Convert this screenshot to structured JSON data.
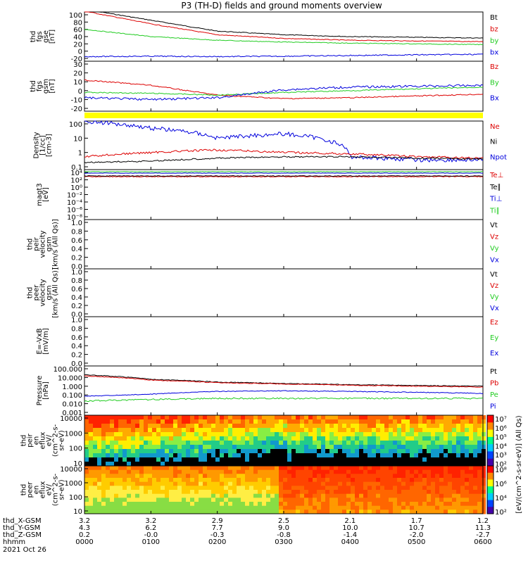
{
  "title": "P3 (TH-D) fields and ground moments overview",
  "colors": {
    "black": "#000000",
    "red": "#dd0000",
    "green": "#22cc22",
    "blue": "#0000dd",
    "yellow": "#ffff00"
  },
  "panels": [
    {
      "id": "fgs-gse",
      "ylabel": [
        "thd",
        "fgs",
        "gse",
        "[nT]"
      ],
      "ticks": [
        "100",
        "80",
        "60",
        "40",
        "20",
        "0",
        "-20"
      ],
      "legend": [
        {
          "text": "Bt",
          "color": "#000000"
        },
        {
          "text": "bz",
          "color": "#dd0000"
        },
        {
          "text": "by",
          "color": "#22cc22"
        },
        {
          "text": "bx",
          "color": "#0000dd"
        }
      ]
    },
    {
      "id": "fgs-gsm",
      "ylabel": [
        "thd",
        "fgs",
        "gsm",
        "[nT]"
      ],
      "ticks": [
        "30",
        "20",
        "10",
        "0",
        "-10",
        "-20"
      ],
      "legend": [
        {
          "text": "Bz",
          "color": "#dd0000"
        },
        {
          "text": "By",
          "color": "#22cc22"
        },
        {
          "text": "Bx",
          "color": "#0000dd"
        }
      ]
    },
    {
      "id": "density",
      "ylabel": [
        "Density",
        "[1/cc]",
        "[cm-3]"
      ],
      "ticks": [
        "100",
        "10",
        "1",
        "0.1"
      ],
      "legend": [
        {
          "text": "Ne",
          "color": "#dd0000"
        },
        {
          "text": "Ni",
          "color": "#000000"
        },
        {
          "text": "Npot",
          "color": "#0000dd"
        }
      ]
    },
    {
      "id": "temperature",
      "ylabel": [
        "magt3",
        "[eV]"
      ],
      "ticks": [
        "10⁴",
        "10²",
        "10⁰",
        "10⁻²",
        "10⁻⁴",
        "10⁻⁶",
        "10⁻⁸"
      ],
      "legend": [
        {
          "text": "Te⊥",
          "color": "#dd0000"
        },
        {
          "text": "Te∥",
          "color": "#000000"
        },
        {
          "text": "Ti⊥",
          "color": "#0000dd"
        },
        {
          "text": "Ti∥",
          "color": "#22cc22"
        }
      ]
    },
    {
      "id": "peir-velocity",
      "ylabel": [
        "thd",
        "peir",
        "velocity",
        "gsm",
        "[km/s (All Qs)]"
      ],
      "ticks": [
        "1.0",
        "0.8",
        "0.6",
        "0.4",
        "0.2",
        "0.0"
      ],
      "legend": [
        {
          "text": "Vt",
          "color": "#000000"
        },
        {
          "text": "Vz",
          "color": "#dd0000"
        },
        {
          "text": "Vy",
          "color": "#22cc22"
        },
        {
          "text": "Vx",
          "color": "#0000dd"
        }
      ]
    },
    {
      "id": "peer-velocity",
      "ylabel": [
        "thd",
        "peer",
        "velocity",
        "gsm",
        "[km/s (All Qs)]"
      ],
      "ticks": [
        "1.0",
        "0.8",
        "0.6",
        "0.4",
        "0.2",
        "0.0"
      ],
      "legend": [
        {
          "text": "Vt",
          "color": "#000000"
        },
        {
          "text": "Vz",
          "color": "#dd0000"
        },
        {
          "text": "Vy",
          "color": "#22cc22"
        },
        {
          "text": "Vx",
          "color": "#0000dd"
        }
      ]
    },
    {
      "id": "efield",
      "ylabel": [
        "E=-VxB",
        "[mV/m]"
      ],
      "ticks": [
        "1.0",
        "0.8",
        "0.6",
        "0.4",
        "0.2",
        "0.0"
      ],
      "legend": [
        {
          "text": "Ez",
          "color": "#dd0000"
        },
        {
          "text": "Ey",
          "color": "#22cc22"
        },
        {
          "text": "Ex",
          "color": "#0000dd"
        }
      ]
    },
    {
      "id": "pressure",
      "ylabel": [
        "Pressure",
        "[nPa]"
      ],
      "ticks": [
        "100.000",
        "10.000",
        "1.000",
        "0.100",
        "0.010",
        "0.001"
      ],
      "legend": [
        {
          "text": "Pt",
          "color": "#000000"
        },
        {
          "text": "Pb",
          "color": "#dd0000"
        },
        {
          "text": "Pe",
          "color": "#22cc22"
        },
        {
          "text": "Pi",
          "color": "#0000dd"
        }
      ]
    },
    {
      "id": "peir-eflux",
      "ylabel": [
        "thd",
        "peir",
        "en",
        "eflux",
        "eV/",
        "(cm^2-s-",
        "sr-eV)"
      ],
      "ticks": [
        "10000",
        "1000",
        "100",
        "10"
      ],
      "colorbar": [
        "10⁷",
        "10⁶",
        "10⁵",
        "10⁴",
        "10³",
        "10²"
      ],
      "colorbar_label": "[eV/(cm^2-s-sr-eV)] (All Qs)"
    },
    {
      "id": "peer-eflux",
      "ylabel": [
        "thd",
        "peer",
        "en",
        "eflux",
        "eV/",
        "(cm^2-s-",
        "sr-eV)"
      ],
      "ticks": [
        "10000",
        "1000",
        "100",
        "10"
      ],
      "colorbar": [
        "10⁸",
        "10⁶",
        "10⁴",
        "10²"
      ],
      "colorbar_label": "[eV/(cm^2-s-sr-eV)]"
    }
  ],
  "ephemeris": {
    "rows": [
      {
        "label": "thd_X-GSM",
        "values": [
          "3.2",
          "3.2",
          "2.9",
          "2.5",
          "2.1",
          "1.7",
          "1.2"
        ]
      },
      {
        "label": "thd_Y-GSM",
        "values": [
          "4.3",
          "6.2",
          "7.7",
          "9.0",
          "10.0",
          "10.7",
          "11.3"
        ]
      },
      {
        "label": "thd_Z-GSM",
        "values": [
          "0.2",
          "-0.0",
          "-0.3",
          "-0.8",
          "-1.4",
          "-2.0",
          "-2.7"
        ]
      },
      {
        "label": "hhmm",
        "values": [
          "0000",
          "0100",
          "0200",
          "0300",
          "0400",
          "0500",
          "0600"
        ]
      }
    ],
    "date": "2021 Oct 26"
  },
  "chart_data": {
    "type": "line",
    "title": "P3 (TH-D) fields and ground moments overview",
    "x": [
      "0000",
      "0100",
      "0200",
      "0300",
      "0400",
      "0500",
      "0600"
    ],
    "xlabel": "hhmm",
    "series": [
      {
        "name": "Bt",
        "values": [
          115,
          85,
          55,
          45,
          40,
          38,
          36
        ]
      },
      {
        "name": "bz",
        "values": [
          110,
          75,
          45,
          35,
          30,
          28,
          26
        ]
      },
      {
        "name": "by",
        "values": [
          60,
          40,
          30,
          25,
          22,
          20,
          18
        ]
      },
      {
        "name": "bx",
        "values": [
          -15,
          -14,
          -15,
          -14,
          -12,
          -10,
          -9
        ]
      },
      {
        "name": "Bz",
        "values": [
          12,
          6,
          -5,
          -9,
          -8,
          -6,
          -4
        ]
      },
      {
        "name": "By",
        "values": [
          -2,
          -3,
          -5,
          -2,
          0,
          2,
          4
        ]
      },
      {
        "name": "Bx",
        "values": [
          -8,
          -10,
          -8,
          1,
          4,
          5,
          6
        ]
      },
      {
        "name": "Npot",
        "values": [
          150,
          50,
          10,
          20,
          0.5,
          0.3,
          0.3
        ]
      },
      {
        "name": "Ne",
        "values": [
          0.5,
          1,
          1.5,
          1,
          0.8,
          0.5,
          0.4
        ]
      },
      {
        "name": "Ni",
        "values": [
          0.2,
          0.25,
          0.4,
          0.5,
          0.5,
          0.4,
          0.35
        ]
      },
      {
        "name": "Pt",
        "values": [
          20,
          6,
          3,
          2,
          1.5,
          1.2,
          1.0
        ]
      },
      {
        "name": "Pb",
        "values": [
          15,
          5,
          2.5,
          1.8,
          1.3,
          1.0,
          0.8
        ]
      },
      {
        "name": "Pi",
        "values": [
          0.07,
          0.12,
          0.25,
          0.3,
          0.25,
          0.2,
          0.15
        ]
      },
      {
        "name": "Pe",
        "values": [
          0.02,
          0.03,
          0.04,
          0.04,
          0.04,
          0.04,
          0.04
        ]
      }
    ]
  }
}
